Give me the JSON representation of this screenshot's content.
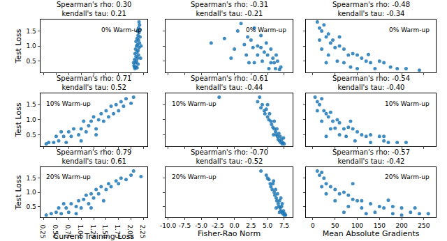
{
  "chart_data": [
    {
      "type": "scatter",
      "title": "Spearman's rho: 0.30",
      "subtitle": "kendall's tau: 0.21",
      "annotation": "0% Warm-up",
      "y_label": "Test Loss",
      "color": "#1f77b4",
      "marker": "circle",
      "tick_labels": "y",
      "xlim": [
        0.18,
        2.33
      ],
      "xticks": [
        0.25,
        {
          "value": 0.5,
          "label": "0.50"
        },
        0.75,
        {
          "value": 1,
          "label": "1.00"
        },
        1.25,
        {
          "value": 1.5,
          "label": "1.50"
        },
        1.75,
        {
          "value": 2,
          "label": "2.00"
        },
        2.25
      ],
      "ylim": [
        0.12,
        1.88
      ],
      "yticks": [
        0.5,
        {
          "value": 1,
          "label": "1.0"
        },
        1.5
      ],
      "x": [
        2.08,
        2.1,
        2.12,
        2.06,
        2.14,
        2.09,
        2.11,
        2.07,
        2.13,
        2.1,
        2.15,
        2.08,
        2.12,
        2.14,
        2.09,
        2.16,
        2.11,
        2.13,
        2.17,
        2.1,
        2.15,
        2.12,
        2.18,
        2.14,
        2.16,
        2.13,
        2.18,
        2.15,
        2.17,
        2.16,
        2.05,
        2.19,
        2.07,
        2.2
      ],
      "y": [
        0.25,
        0.3,
        0.28,
        0.35,
        0.4,
        0.45,
        0.5,
        0.55,
        0.6,
        0.65,
        0.7,
        0.75,
        0.8,
        0.85,
        0.9,
        0.95,
        1.0,
        1.05,
        1.1,
        1.15,
        1.2,
        1.25,
        1.3,
        1.35,
        1.45,
        1.5,
        1.55,
        1.6,
        1.7,
        1.8,
        0.45,
        0.6,
        0.3,
        1.0
      ]
    },
    {
      "type": "scatter",
      "title": "Spearman's rho: -0.31",
      "subtitle": "kendall's tau: -0.21",
      "annotation": "0% Warm-up",
      "color": "#1f77b4",
      "marker": "circle",
      "tick_labels": false,
      "xlim": [
        -10.4,
        8.8
      ],
      "xticks": [
        {
          "value": -10,
          "label": "-10.0"
        },
        -7.5,
        {
          "value": -5,
          "label": "-5.0"
        },
        -2.5,
        {
          "value": 0,
          "label": "0.0"
        },
        2.5,
        {
          "value": 5,
          "label": "5.0"
        },
        7.5
      ],
      "ylim": [
        0.12,
        1.88
      ],
      "yticks": [
        0.5,
        {
          "value": 1,
          "label": "1.0"
        },
        1.5
      ],
      "x": [
        -3.5,
        -1.5,
        0.5,
        1.0,
        1.5,
        2.0,
        2.5,
        3.0,
        3.5,
        4.0,
        4.5,
        5.0,
        3.5,
        4.2,
        5.5,
        6.0,
        5.2,
        6.2,
        6.8,
        3.0,
        4.8,
        5.5,
        6.3,
        2.8,
        0.0,
        1.8,
        2.2,
        5.8,
        6.5,
        4.0,
        -0.5,
        7.0
      ],
      "y": [
        1.1,
        1.25,
        1.5,
        1.75,
        1.05,
        1.3,
        1.2,
        1.6,
        1.0,
        0.95,
        0.8,
        0.7,
        0.7,
        0.5,
        0.45,
        0.45,
        0.25,
        0.25,
        0.22,
        0.45,
        1.1,
        0.9,
        0.7,
        0.95,
        0.9,
        0.7,
        0.45,
        0.6,
        0.5,
        1.35,
        0.6,
        0.3
      ]
    },
    {
      "type": "scatter",
      "title": "Spearman's rho: -0.48",
      "subtitle": "kendall's tau: -0.34",
      "annotation": "0% Warm-up",
      "color": "#1f77b4",
      "marker": "circle",
      "tick_labels": false,
      "xlim": [
        -15,
        277
      ],
      "xticks": [
        0,
        50,
        100,
        150,
        200,
        250
      ],
      "ylim": [
        0.12,
        1.88
      ],
      "yticks": [
        0.5,
        {
          "value": 1,
          "label": "1.0"
        },
        1.5
      ],
      "x": [
        10,
        15,
        20,
        25,
        30,
        35,
        40,
        45,
        50,
        60,
        70,
        80,
        90,
        100,
        110,
        120,
        130,
        150,
        160,
        175,
        190,
        210,
        20,
        35,
        55,
        70,
        85,
        100,
        140,
        240,
        15,
        60,
        125,
        30
      ],
      "y": [
        1.8,
        1.6,
        1.5,
        1.7,
        1.3,
        1.4,
        1.1,
        1.2,
        0.95,
        1.0,
        0.9,
        0.7,
        0.75,
        0.7,
        0.6,
        0.5,
        0.45,
        0.5,
        0.45,
        0.3,
        0.25,
        0.25,
        0.9,
        0.7,
        0.5,
        0.45,
        0.3,
        0.25,
        0.25,
        0.2,
        1.2,
        1.3,
        0.72,
        0.45
      ]
    },
    {
      "type": "scatter",
      "title": "Spearman's rho: 0.71",
      "subtitle": "kendall's tau: 0.52",
      "annotation": "10% Warm-up",
      "y_label": "Test Loss",
      "color": "#1f77b4",
      "marker": "circle",
      "tick_labels": "y",
      "xlim": [
        0.18,
        2.33
      ],
      "xticks": [
        0.25,
        {
          "value": 0.5,
          "label": "0.50"
        },
        0.75,
        {
          "value": 1,
          "label": "1.00"
        },
        1.25,
        {
          "value": 1.5,
          "label": "1.50"
        },
        1.75,
        {
          "value": 2,
          "label": "2.00"
        },
        2.25
      ],
      "ylim": [
        0.12,
        1.88
      ],
      "yticks": [
        0.5,
        {
          "value": 1,
          "label": "1.0"
        },
        1.5
      ],
      "x": [
        0.3,
        0.35,
        0.45,
        0.5,
        0.55,
        0.65,
        0.7,
        0.75,
        0.8,
        0.85,
        0.95,
        1.0,
        1.05,
        1.1,
        1.15,
        1.2,
        1.25,
        1.3,
        1.35,
        1.4,
        1.45,
        1.5,
        1.55,
        1.6,
        1.65,
        1.7,
        1.75,
        1.8,
        1.85,
        1.9,
        2.0,
        2.05,
        0.6,
        1.0,
        1.3
      ],
      "y": [
        0.2,
        0.25,
        0.25,
        0.45,
        0.3,
        0.45,
        0.25,
        0.6,
        0.45,
        0.7,
        0.5,
        0.7,
        0.95,
        0.6,
        0.8,
        0.95,
        1.1,
        0.7,
        1.0,
        1.2,
        0.95,
        1.3,
        1.1,
        1.45,
        1.2,
        1.5,
        1.3,
        1.6,
        1.45,
        1.7,
        1.55,
        1.75,
        0.6,
        0.3,
        0.5
      ]
    },
    {
      "type": "scatter",
      "title": "Spearman's rho: -0.61",
      "subtitle": "kendall's tau: -0.44",
      "annotation": "10% Warm-up",
      "color": "#1f77b4",
      "marker": "circle",
      "tick_labels": false,
      "xlim": [
        -10.4,
        8.8
      ],
      "xticks": [
        {
          "value": -10,
          "label": "-10.0"
        },
        -7.5,
        {
          "value": -5,
          "label": "-5.0"
        },
        -2.5,
        {
          "value": 0,
          "label": "0.0"
        },
        2.5,
        {
          "value": 5,
          "label": "5.0"
        },
        7.5
      ],
      "ylim": [
        0.12,
        1.88
      ],
      "yticks": [
        0.5,
        {
          "value": 1,
          "label": "1.0"
        },
        1.5
      ],
      "x": [
        -2.3,
        3.5,
        3.8,
        4.0,
        4.2,
        4.5,
        4.6,
        4.8,
        5.0,
        5.2,
        5.3,
        5.5,
        5.6,
        5.8,
        6.0,
        6.0,
        6.2,
        6.3,
        6.4,
        6.5,
        6.6,
        6.8,
        6.9,
        7.0,
        7.1,
        7.2,
        7.3,
        7.5,
        5.0,
        6.7,
        5.9,
        7.4
      ],
      "y": [
        1.75,
        1.6,
        1.75,
        1.4,
        1.5,
        1.3,
        1.2,
        1.35,
        1.1,
        1.0,
        1.2,
        0.95,
        0.85,
        0.75,
        0.7,
        0.95,
        0.6,
        0.5,
        0.7,
        0.45,
        0.35,
        0.3,
        0.45,
        0.25,
        0.35,
        0.2,
        0.25,
        0.2,
        1.5,
        0.55,
        0.5,
        0.4
      ]
    },
    {
      "type": "scatter",
      "title": "Spearman's rho: -0.54",
      "subtitle": "kendall's tau: -0.40",
      "annotation": "10% Warm-up",
      "color": "#1f77b4",
      "marker": "circle",
      "tick_labels": false,
      "xlim": [
        -15,
        277
      ],
      "xticks": [
        0,
        50,
        100,
        150,
        200,
        250
      ],
      "ylim": [
        0.12,
        1.88
      ],
      "yticks": [
        0.5,
        {
          "value": 1,
          "label": "1.0"
        },
        1.5
      ],
      "x": [
        5,
        10,
        15,
        20,
        25,
        30,
        35,
        40,
        45,
        55,
        60,
        70,
        80,
        90,
        100,
        110,
        120,
        130,
        150,
        160,
        170,
        190,
        210,
        20,
        40,
        60,
        75,
        95,
        130,
        160,
        50,
        10,
        85,
        30
      ],
      "y": [
        1.75,
        1.6,
        1.5,
        1.7,
        1.3,
        1.2,
        1.1,
        1.25,
        0.95,
        1.0,
        0.9,
        0.7,
        0.75,
        0.7,
        0.6,
        0.5,
        0.45,
        0.5,
        0.45,
        0.3,
        0.25,
        0.25,
        0.25,
        0.95,
        0.7,
        0.5,
        0.45,
        0.3,
        0.25,
        0.45,
        0.72,
        1.3,
        0.95,
        0.45
      ]
    },
    {
      "type": "scatter",
      "title": "Spearman's rho: 0.79",
      "subtitle": "kendall's tau: 0.61",
      "annotation": "20% Warm-up",
      "x_label": "Current Training Loss",
      "y_label": "Test Loss",
      "color": "#1f77b4",
      "marker": "circle",
      "xlim": [
        0.18,
        2.33
      ],
      "xticks": [
        0.25,
        {
          "value": 0.5,
          "label": "0.50"
        },
        0.75,
        {
          "value": 1,
          "label": "1.00"
        },
        1.25,
        {
          "value": 1.5,
          "label": "1.50"
        },
        1.75,
        {
          "value": 2,
          "label": "2.00"
        },
        2.25
      ],
      "ylim": [
        0.12,
        1.88
      ],
      "yticks": [
        0.5,
        {
          "value": 1,
          "label": "1.0"
        },
        1.5
      ],
      "x": [
        0.3,
        0.4,
        0.5,
        0.55,
        0.6,
        0.7,
        0.75,
        0.8,
        0.9,
        0.95,
        1.0,
        1.05,
        1.1,
        1.15,
        1.2,
        1.25,
        1.3,
        1.35,
        1.4,
        1.5,
        1.55,
        1.6,
        1.7,
        1.75,
        1.8,
        1.9,
        2.0,
        2.05,
        2.2,
        0.65,
        1.2,
        1.45,
        0.9
      ],
      "y": [
        0.2,
        0.25,
        0.3,
        0.45,
        0.25,
        0.45,
        0.3,
        0.6,
        0.5,
        0.7,
        0.45,
        0.75,
        0.9,
        0.6,
        0.95,
        0.8,
        1.1,
        0.95,
        1.2,
        1.1,
        1.3,
        1.2,
        1.4,
        1.3,
        1.5,
        1.45,
        1.6,
        1.75,
        1.55,
        0.6,
        0.45,
        0.7,
        0.25
      ]
    },
    {
      "type": "scatter",
      "title": "Spearman's rho: -0.70",
      "subtitle": "kendall's tau: -0.52",
      "annotation": "20% Warm-up",
      "x_label": "Fisher-Rao Norm",
      "color": "#1f77b4",
      "marker": "circle",
      "tick_labels": "x",
      "xlim": [
        -10.4,
        8.8
      ],
      "xticks": [
        {
          "value": -10,
          "label": "-10.0"
        },
        -7.5,
        {
          "value": -5,
          "label": "-5.0"
        },
        -2.5,
        {
          "value": 0,
          "label": "0.0"
        },
        2.5,
        {
          "value": 5,
          "label": "5.0"
        },
        7.5
      ],
      "ylim": [
        0.12,
        1.88
      ],
      "yticks": [
        0.5,
        {
          "value": 1,
          "label": "1.0"
        },
        1.5
      ],
      "x": [
        4.0,
        4.8,
        5.0,
        5.2,
        5.4,
        5.5,
        5.7,
        5.8,
        6.0,
        6.1,
        6.2,
        6.3,
        6.4,
        6.5,
        6.6,
        6.7,
        6.8,
        6.9,
        7.0,
        7.1,
        7.2,
        7.3,
        7.4,
        7.5,
        7.6,
        7.7,
        5.9,
        6.8,
        7.2,
        6.3,
        7.0
      ],
      "y": [
        1.75,
        1.6,
        1.5,
        1.45,
        1.3,
        1.2,
        1.1,
        1.3,
        1.0,
        0.9,
        1.1,
        0.8,
        0.7,
        0.95,
        0.6,
        0.5,
        0.7,
        0.45,
        0.35,
        0.5,
        0.3,
        0.25,
        0.35,
        0.2,
        0.25,
        0.2,
        1.4,
        0.3,
        0.6,
        0.45,
        0.8
      ]
    },
    {
      "type": "scatter",
      "title": "Spearman's rho: -0.57",
      "subtitle": "kendall's tau: -0.42",
      "annotation": "20% Warm-up",
      "x_label": "Mean Absolute Gradients",
      "color": "#1f77b4",
      "marker": "circle",
      "tick_labels": "x",
      "xlim": [
        -15,
        277
      ],
      "xticks": [
        0,
        50,
        100,
        150,
        200,
        250
      ],
      "ylim": [
        0.12,
        1.88
      ],
      "yticks": [
        0.5,
        {
          "value": 1,
          "label": "1.0"
        },
        1.5
      ],
      "x": [
        10,
        15,
        20,
        25,
        30,
        40,
        50,
        60,
        70,
        80,
        90,
        100,
        110,
        130,
        150,
        160,
        180,
        200,
        220,
        240,
        260,
        30,
        50,
        80,
        110,
        140,
        180,
        200,
        120,
        70,
        20,
        170,
        230,
        90
      ],
      "y": [
        1.75,
        1.6,
        1.7,
        1.5,
        1.3,
        1.2,
        1.1,
        0.95,
        1.0,
        0.9,
        0.75,
        0.7,
        0.7,
        0.6,
        0.5,
        0.45,
        0.5,
        0.45,
        0.3,
        0.25,
        0.25,
        0.95,
        0.7,
        0.5,
        0.45,
        0.3,
        0.25,
        0.2,
        0.25,
        0.3,
        1.2,
        0.72,
        0.45,
        1.3
      ]
    }
  ]
}
